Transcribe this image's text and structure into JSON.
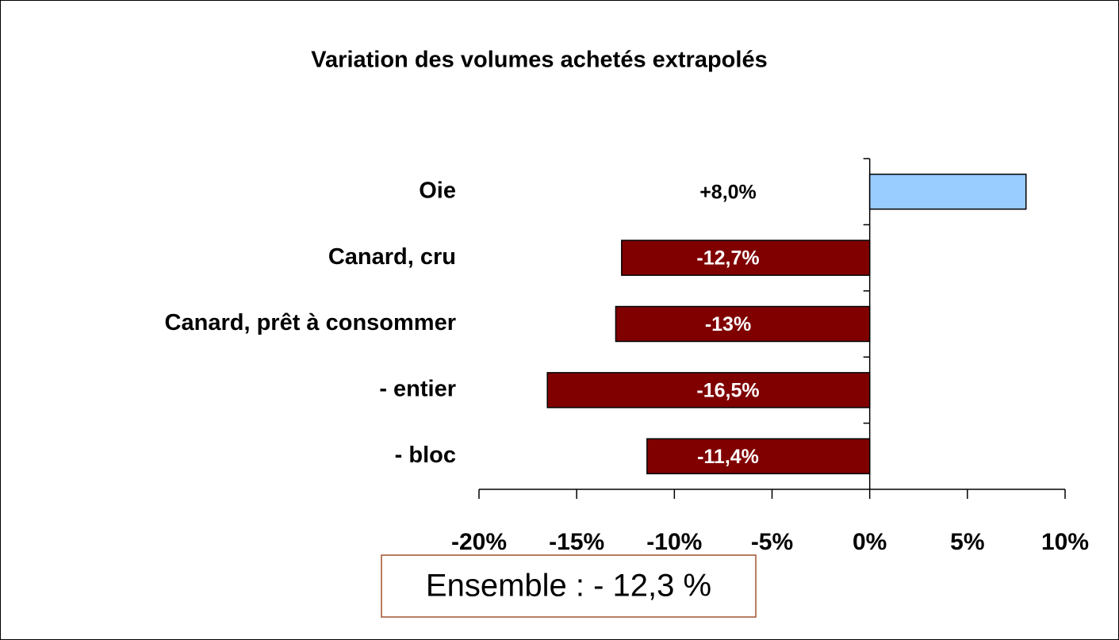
{
  "chart_data": {
    "type": "hbar",
    "title": "Variation des volumes achetés extrapolés",
    "categories": [
      "Oie",
      "Canard, cru",
      "Canard, prêt à consommer",
      "- entier",
      "- bloc"
    ],
    "values": [
      8.0,
      -12.7,
      -13,
      -16.5,
      -11.4
    ],
    "value_labels": [
      "+8,0%",
      "-12,7%",
      "-13%",
      "-16,5%",
      "-11,4%"
    ],
    "colors": [
      "#99ccff",
      "#800000",
      "#800000",
      "#800000",
      "#800000"
    ],
    "xlim": [
      -20,
      10
    ],
    "xticks": [
      {
        "value": -20,
        "label": "-20%"
      },
      {
        "value": -15,
        "label": "-15%"
      },
      {
        "value": -10,
        "label": "-10%"
      },
      {
        "value": -5,
        "label": "-5%"
      },
      {
        "value": 0,
        "label": "0%"
      },
      {
        "value": 5,
        "label": "5%"
      },
      {
        "value": 10,
        "label": "10%"
      }
    ],
    "annotation": "Ensemble : - 12,3 %"
  }
}
